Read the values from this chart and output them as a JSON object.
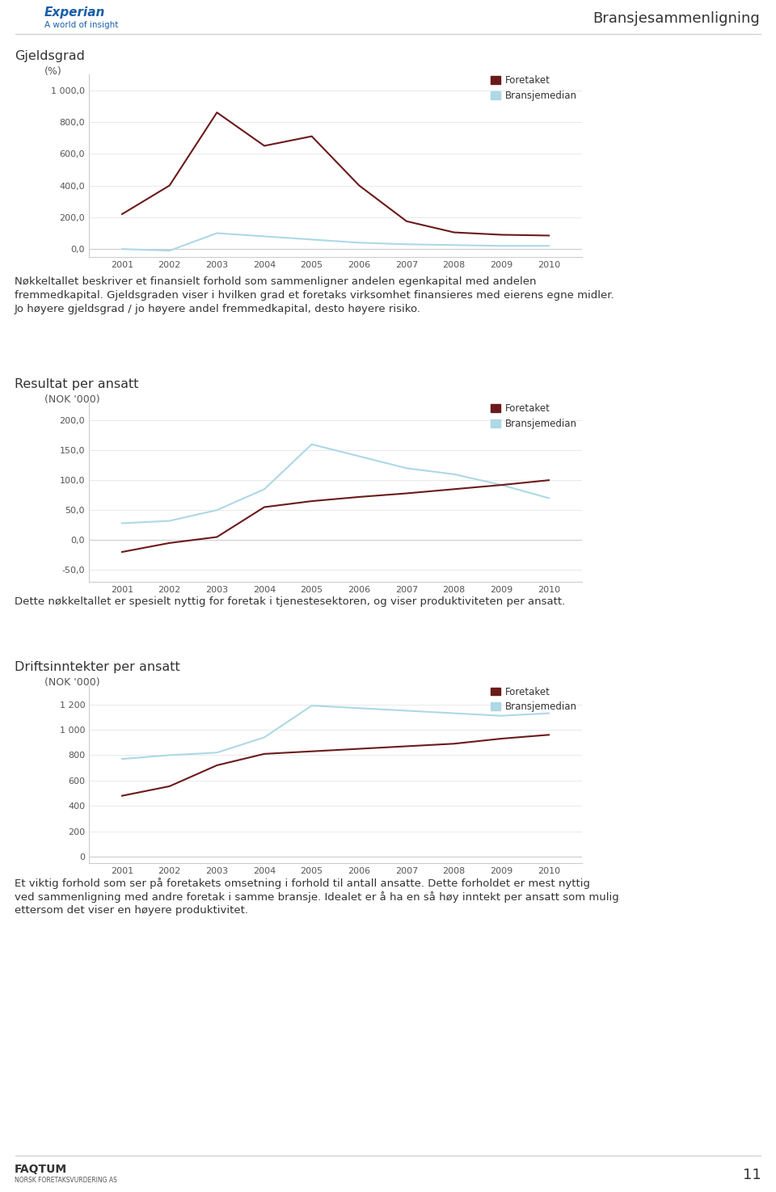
{
  "page_title": "Bransjesammenligning",
  "page_number": "11",
  "background_color": "#ffffff",
  "text_color": "#333333",
  "foretaket_color": "#6B1A1A",
  "bransjemedian_color": "#ADD8E6",
  "chart1": {
    "title": "Gjeldsgrad",
    "subtitle": "(%)",
    "years": [
      2001,
      2002,
      2003,
      2004,
      2005,
      2006,
      2007,
      2008,
      2009,
      2010
    ],
    "foretaket": [
      220,
      400,
      860,
      650,
      710,
      400,
      175,
      105,
      90,
      85
    ],
    "bransjemedian": [
      0,
      -10,
      100,
      80,
      60,
      40,
      30,
      25,
      20,
      20
    ],
    "ylim": [
      -50,
      1100
    ],
    "yticks": [
      0,
      200,
      400,
      600,
      800,
      1000
    ],
    "ytick_labels": [
      "0,0",
      "200,0",
      "400,0",
      "600,0",
      "800,0",
      "1 000,0"
    ],
    "desc_lines": [
      "Nøkkeltallet beskriver et finansielt forhold som sammenligner andelen egenkapital med andelen",
      "fremmedkapital. Gjeldsgraden viser i hvilken grad et foretaks virksomhet finansieres med eierens egne midler.",
      "Jo høyere gjeldsgrad / jo høyere andel fremmedkapital, desto høyere risiko."
    ]
  },
  "chart2": {
    "title": "Resultat per ansatt",
    "subtitle": "(NOK '000)",
    "years": [
      2001,
      2002,
      2003,
      2004,
      2005,
      2006,
      2007,
      2008,
      2009,
      2010
    ],
    "foretaket": [
      -20,
      -5,
      5,
      55,
      65,
      72,
      78,
      85,
      92,
      100
    ],
    "bransjemedian": [
      28,
      32,
      50,
      85,
      160,
      140,
      120,
      110,
      92,
      70
    ],
    "ylim": [
      -70,
      230
    ],
    "yticks": [
      -50,
      0,
      50,
      100,
      150,
      200
    ],
    "ytick_labels": [
      "-50,0",
      "0,0",
      "50,0",
      "100,0",
      "150,0",
      "200,0"
    ],
    "desc_lines": [
      "Dette nøkkeltallet er spesielt nyttig for foretak i tjenestesektoren, og viser produktiviteten per ansatt."
    ]
  },
  "chart3": {
    "title": "Driftsinntekter per ansatt",
    "subtitle": "(NOK '000)",
    "years": [
      2001,
      2002,
      2003,
      2004,
      2005,
      2006,
      2007,
      2008,
      2009,
      2010
    ],
    "foretaket": [
      480,
      555,
      720,
      810,
      830,
      850,
      870,
      890,
      930,
      960
    ],
    "bransjemedian": [
      770,
      800,
      820,
      940,
      1190,
      1170,
      1150,
      1130,
      1110,
      1130
    ],
    "ylim": [
      -50,
      1350
    ],
    "yticks": [
      0,
      200,
      400,
      600,
      800,
      1000,
      1200
    ],
    "ytick_labels": [
      "0",
      "200",
      "400",
      "600",
      "800",
      "1 000",
      "1 200"
    ],
    "desc_lines": [
      "Et viktig forhold som ser på foretakets omsetning i forhold til antall ansatte. Dette forholdet er mest nyttig",
      "ved sammenligning med andre foretak i samme bransje. Idealet er å ha en så høy inntekt per ansatt som mulig",
      "ettersom det viser en høyere produktivitet."
    ]
  },
  "legend_foretaket": "Foretaket",
  "legend_bransjemedian": "Bransjemedian"
}
